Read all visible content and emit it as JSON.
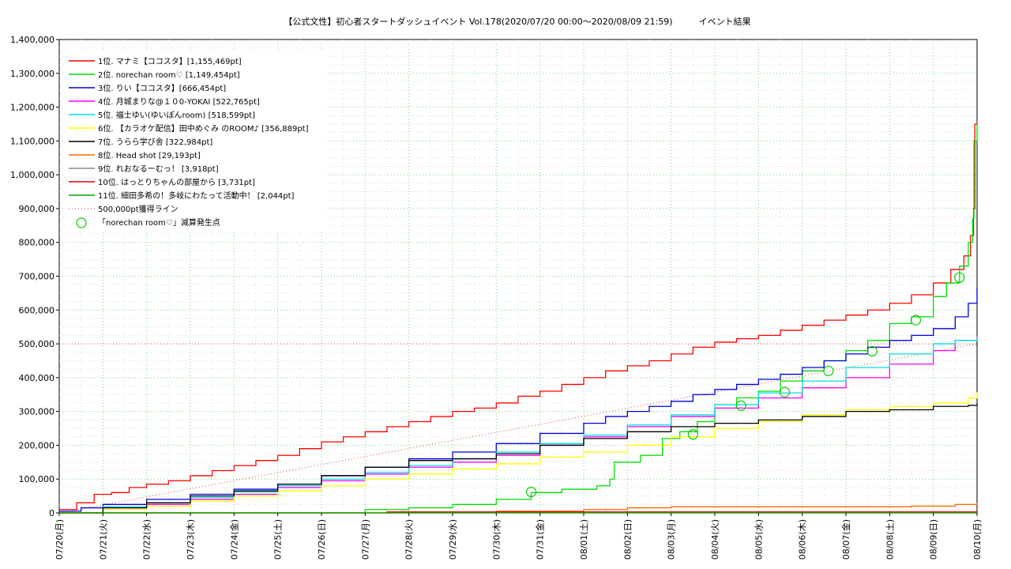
{
  "title": "【公式文性】初心者スタートダッシュイベント Vol.178(2020/07/20 00:00〜2020/08/09 21:59)　　　イベント結果",
  "chart_data": {
    "type": "line",
    "title": "【公式文性】初心者スタートダッシュイベント Vol.178(2020/07/20 00:00〜2020/08/09 21:59)　　　イベント結果",
    "xlabel": "",
    "ylabel": "",
    "ylim": [
      0,
      1400000
    ],
    "y_ticks": [
      0,
      100000,
      200000,
      300000,
      400000,
      500000,
      600000,
      700000,
      800000,
      900000,
      1000000,
      1100000,
      1200000,
      1300000,
      1400000
    ],
    "y_tick_labels": [
      "0",
      "100,000",
      "200,000",
      "300,000",
      "400,000",
      "500,000",
      "600,000",
      "700,000",
      "800,000",
      "900,000",
      "1,000,000",
      "1,100,000",
      "1,200,000",
      "1,300,000",
      "1,400,000"
    ],
    "x_tick_labels": [
      "07/20(月)",
      "07/21(火)",
      "07/22(水)",
      "07/23(木)",
      "07/24(金)",
      "07/25(土)",
      "07/26(日)",
      "07/27(月)",
      "07/28(火)",
      "07/29(水)",
      "07/30(木)",
      "07/31(金)",
      "08/01(土)",
      "08/02(日)",
      "08/03(月)",
      "08/04(火)",
      "08/05(水)",
      "08/06(木)",
      "08/07(金)",
      "08/08(土)",
      "08/09(日)",
      "08/10(月)"
    ],
    "xlim": [
      0,
      21
    ],
    "grid": true,
    "legend_position": "top-left",
    "series": [
      {
        "name": "1位. マナミ【ココスタ】[1,155,469pt]",
        "color": "#ff0000",
        "x": [
          0,
          0.4,
          0.8,
          1.2,
          1.6,
          2.0,
          2.5,
          3.0,
          3.5,
          4.0,
          4.5,
          5.0,
          5.5,
          6.0,
          6.5,
          7.0,
          7.5,
          8.0,
          8.5,
          9.0,
          9.5,
          10.0,
          10.5,
          11.0,
          11.5,
          12.0,
          12.5,
          13.0,
          13.5,
          14.0,
          14.5,
          15.0,
          15.5,
          16.0,
          16.5,
          17.0,
          17.5,
          18.0,
          18.5,
          19.0,
          19.5,
          20.0,
          20.4,
          20.7,
          20.85,
          20.92,
          20.95,
          21.0
        ],
        "y": [
          10000,
          30000,
          55000,
          60000,
          75000,
          85000,
          95000,
          110000,
          125000,
          140000,
          155000,
          170000,
          190000,
          210000,
          225000,
          240000,
          255000,
          270000,
          285000,
          300000,
          310000,
          325000,
          345000,
          360000,
          380000,
          400000,
          420000,
          435000,
          450000,
          470000,
          490000,
          505000,
          515000,
          525000,
          540000,
          555000,
          570000,
          585000,
          600000,
          620000,
          645000,
          680000,
          720000,
          760000,
          820000,
          900000,
          1150000,
          1155469
        ]
      },
      {
        "name": "2位. norechan room♡ [1,149,454pt]",
        "color": "#00dd00",
        "x": [
          0,
          6.0,
          7.0,
          8.0,
          9.0,
          10.0,
          10.8,
          11.5,
          12.3,
          12.6,
          12.7,
          13.3,
          13.8,
          14.2,
          14.6,
          15.0,
          15.5,
          16.0,
          16.5,
          17.0,
          17.5,
          18.0,
          18.5,
          19.0,
          19.5,
          20.0,
          20.3,
          20.6,
          20.8,
          20.9,
          20.93,
          21.0
        ],
        "y": [
          0,
          0,
          10000,
          15000,
          25000,
          40000,
          60000,
          70000,
          80000,
          100000,
          150000,
          170000,
          220000,
          240000,
          270000,
          310000,
          340000,
          360000,
          390000,
          420000,
          450000,
          480000,
          510000,
          560000,
          580000,
          640000,
          680000,
          730000,
          800000,
          870000,
          1100000,
          1149454
        ]
      },
      {
        "name": "3位. りい【ココスタ】[666,454pt]",
        "color": "#0000dd",
        "x": [
          0,
          0.5,
          1.0,
          2.0,
          3.0,
          4.0,
          5.0,
          6.0,
          7.0,
          8.0,
          9.0,
          10.0,
          11.0,
          12.0,
          12.5,
          13.0,
          13.5,
          14.0,
          14.5,
          15.0,
          15.5,
          16.0,
          16.5,
          17.0,
          17.5,
          18.0,
          18.5,
          19.0,
          19.5,
          20.0,
          20.5,
          20.8,
          21.0
        ],
        "y": [
          5000,
          15000,
          25000,
          40000,
          55000,
          70000,
          85000,
          110000,
          135000,
          160000,
          180000,
          205000,
          235000,
          265000,
          285000,
          300000,
          315000,
          330000,
          350000,
          365000,
          380000,
          395000,
          410000,
          430000,
          450000,
          470000,
          490000,
          510000,
          525000,
          545000,
          580000,
          620000,
          666454
        ]
      },
      {
        "name": "4位. 月城まりな@１０0-YOKAI [522,765pt]",
        "color": "#ff00ff",
        "x": [
          0,
          1.0,
          2.0,
          3.0,
          4.0,
          5.0,
          6.0,
          7.0,
          8.0,
          9.0,
          10.0,
          11.0,
          12.0,
          13.0,
          14.0,
          15.0,
          16.0,
          17.0,
          18.0,
          19.0,
          20.0,
          20.5,
          21.0
        ],
        "y": [
          0,
          15000,
          25000,
          40000,
          55000,
          75000,
          95000,
          115000,
          135000,
          150000,
          170000,
          200000,
          225000,
          255000,
          285000,
          310000,
          340000,
          370000,
          400000,
          440000,
          480000,
          510000,
          522765
        ]
      },
      {
        "name": "5位. 福士ゆい(ゆいぽんroom) [518,599pt]",
        "color": "#00dddd",
        "x": [
          0,
          1.0,
          2.0,
          3.0,
          4.0,
          5.0,
          6.0,
          7.0,
          8.0,
          9.0,
          10.0,
          11.0,
          12.0,
          13.0,
          14.0,
          15.0,
          16.0,
          17.0,
          18.0,
          19.0,
          20.0,
          20.5,
          21.0
        ],
        "y": [
          0,
          18000,
          30000,
          45000,
          62000,
          80000,
          100000,
          120000,
          140000,
          160000,
          180000,
          205000,
          230000,
          260000,
          290000,
          320000,
          355000,
          390000,
          430000,
          470000,
          500000,
          510000,
          518599
        ]
      },
      {
        "name": "6位. 【カラオケ配信】田中めぐみ のROOM♪ [356,889pt]",
        "color": "#ffff00",
        "x": [
          0,
          1.0,
          2.0,
          3.0,
          4.0,
          5.0,
          6.0,
          7.0,
          8.0,
          9.0,
          10.0,
          11.0,
          12.0,
          13.0,
          14.0,
          15.0,
          16.0,
          17.0,
          18.0,
          19.0,
          20.0,
          20.8,
          21.0
        ],
        "y": [
          0,
          10000,
          20000,
          35000,
          50000,
          65000,
          80000,
          100000,
          115000,
          130000,
          145000,
          165000,
          180000,
          200000,
          225000,
          250000,
          270000,
          290000,
          305000,
          315000,
          325000,
          340000,
          356889
        ]
      },
      {
        "name": "7位. うらら学び舎 [322,984pt]",
        "color": "#000000",
        "x": [
          0,
          1.0,
          2.0,
          3.0,
          4.0,
          5.0,
          6.0,
          7.0,
          8.0,
          9.0,
          10.0,
          11.0,
          12.0,
          13.0,
          14.0,
          15.0,
          16.0,
          17.0,
          18.0,
          19.0,
          20.0,
          20.8,
          21.0
        ],
        "y": [
          0,
          15000,
          30000,
          50000,
          65000,
          85000,
          110000,
          135000,
          155000,
          160000,
          175000,
          200000,
          220000,
          240000,
          255000,
          265000,
          275000,
          285000,
          300000,
          305000,
          315000,
          318000,
          322984
        ]
      },
      {
        "name": "8位. Head shot [29,193pt]",
        "color": "#ff6600",
        "x": [
          0,
          6.0,
          10.0,
          12.0,
          13.0,
          14.0,
          16.0,
          18.0,
          19.5,
          20.5,
          21.0
        ],
        "y": [
          0,
          0,
          5000,
          10000,
          15000,
          18000,
          18000,
          18000,
          20000,
          25000,
          29193
        ]
      },
      {
        "name": "9位. れおなるーむっ！ [3,918pt]",
        "color": "#888888",
        "x": [
          0,
          21.0
        ],
        "y": [
          0,
          3918
        ]
      },
      {
        "name": "10位. はっとりちゃんの部屋から [3,731pt]",
        "color": "#dd0000",
        "x": [
          0,
          6.5,
          7.5,
          21.0
        ],
        "y": [
          0,
          0,
          3000,
          3731
        ]
      },
      {
        "name": "11位. 細田多希の！多岐にわたって活動中！ [2,044pt]",
        "color": "#00aa00",
        "x": [
          0,
          21.0
        ],
        "y": [
          0,
          2044
        ]
      }
    ],
    "reference_line": {
      "name": "500,000pt獲得ライン",
      "color": "#dd4444",
      "x": [
        0,
        21.0
      ],
      "y": [
        0,
        500000
      ]
    },
    "markers": {
      "name": "「norechan room♡」減算発生点",
      "color": "#00cc00",
      "x": [
        10.8,
        14.5,
        15.6,
        16.6,
        17.6,
        18.6,
        19.6,
        20.6
      ],
      "y": [
        62000,
        232000,
        317000,
        357000,
        420000,
        478000,
        570000,
        696000
      ]
    }
  }
}
